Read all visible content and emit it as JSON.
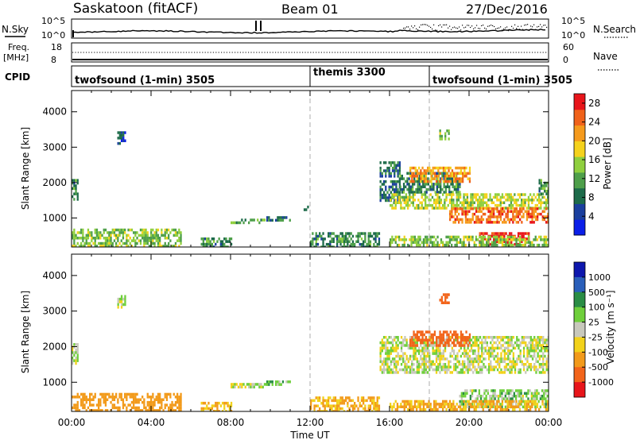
{
  "header": {
    "station_title": "Saskatoon (fitACF)",
    "beam_label": "Beam 01",
    "date_label": "27/Dec/2016"
  },
  "status_panels": {
    "nsky_label": "N.Sky",
    "nsky_ticks": [
      "10^5",
      "10^0"
    ],
    "nsearch_label": "N.Search",
    "nsearch_ticks": [
      "10^5",
      "10^0"
    ],
    "freq_label_line1": "Freq.",
    "freq_label_line2": "[MHz]",
    "freq_ticks": [
      "18",
      "8"
    ],
    "nave_label": "Nave",
    "nave_ticks": [
      "60",
      "0"
    ],
    "cpid_label": "CPID",
    "cpid_segments": [
      {
        "label": "twofsound (1-min) 3505",
        "start_hour": 0,
        "end_hour": 12
      },
      {
        "label": "themis 3300",
        "start_hour": 12,
        "end_hour": 18
      },
      {
        "label": "twofsound (1-min) 3505",
        "start_hour": 18,
        "end_hour": 24
      }
    ]
  },
  "colors": {
    "power_scale": [
      "#0a1ee8",
      "#1a3f9e",
      "#1d6b4a",
      "#4e9f4a",
      "#8fcf3e",
      "#f5d21c",
      "#f59a1c",
      "#f0621a",
      "#e8151a"
    ],
    "velocity_scale": [
      "#0d17ad",
      "#2a5fba",
      "#2a8d45",
      "#6fcf3b",
      "#c8c8bc",
      "#f2d21a",
      "#f29a1a",
      "#f2641a",
      "#e8151a"
    ],
    "ground_scatter": "#c8c8bc"
  },
  "chart_data": [
    {
      "type": "heatmap",
      "panel": "power",
      "xlabel": "",
      "ylabel": "Slant Range [km]",
      "xlim": [
        0,
        24
      ],
      "ylim": [
        180,
        4600
      ],
      "y_ticks": [
        "1000",
        "2000",
        "3000",
        "4000"
      ],
      "colorbar_label": "Power [dB]",
      "colorbar_ticks": [
        "4",
        "8",
        "12",
        "16",
        "20",
        "24",
        "28"
      ],
      "colorbar_range": [
        0,
        30
      ],
      "grid": "dashed verticals at 12:00 and 18:00",
      "regions": [
        {
          "x": [
            0.0,
            5.5
          ],
          "y": [
            200,
            700
          ],
          "value": 14
        },
        {
          "x": [
            0.0,
            0.3
          ],
          "y": [
            1550,
            2100
          ],
          "value": 10
        },
        {
          "x": [
            6.5,
            8.0
          ],
          "y": [
            200,
            450
          ],
          "value": 10
        },
        {
          "x": [
            8.0,
            9.8
          ],
          "y": [
            850,
            980
          ],
          "value": 12
        },
        {
          "x": [
            9.8,
            11.0
          ],
          "y": [
            900,
            1050
          ],
          "value": 8
        },
        {
          "x": [
            11.5,
            12.0
          ],
          "y": [
            1200,
            1350
          ],
          "value": 6
        },
        {
          "x": [
            12.0,
            15.5
          ],
          "y": [
            200,
            600
          ],
          "value": 10
        },
        {
          "x": [
            15.5,
            16.5
          ],
          "y": [
            1500,
            2600
          ],
          "value": 8
        },
        {
          "x": [
            16.5,
            19.5
          ],
          "y": [
            1700,
            2300
          ],
          "value": 10
        },
        {
          "x": [
            17.0,
            20.0
          ],
          "y": [
            2050,
            2450
          ],
          "value": 22
        },
        {
          "x": [
            16.0,
            24.0
          ],
          "y": [
            1300,
            1700
          ],
          "value": 16
        },
        {
          "x": [
            19.0,
            24.0
          ],
          "y": [
            900,
            1300
          ],
          "value": 24
        },
        {
          "x": [
            20.5,
            23.0
          ],
          "y": [
            250,
            600
          ],
          "value": 29
        },
        {
          "x": [
            16.0,
            24.0
          ],
          "y": [
            200,
            500
          ],
          "value": 14
        },
        {
          "x": [
            23.5,
            24.0
          ],
          "y": [
            1700,
            2100
          ],
          "value": 10
        },
        {
          "x": [
            18.5,
            19.0
          ],
          "y": [
            3200,
            3500
          ],
          "value": 14
        },
        {
          "x": [
            2.3,
            2.7
          ],
          "y": [
            3100,
            3450
          ],
          "value": 6
        }
      ]
    },
    {
      "type": "heatmap",
      "panel": "velocity",
      "xlabel": "Time UT",
      "ylabel": "Slant Range [km]",
      "xlim": [
        0,
        24
      ],
      "ylim": [
        180,
        4600
      ],
      "x_ticks": [
        "00:00",
        "04:00",
        "08:00",
        "12:00",
        "16:00",
        "20:00",
        "00:00"
      ],
      "y_ticks": [
        "1000",
        "2000",
        "3000",
        "4000"
      ],
      "colorbar_label": "Velocity [m s⁻¹]",
      "colorbar_ticks": [
        "1000",
        "500",
        "100",
        "25",
        "-25",
        "-100",
        "-500",
        "-1000"
      ],
      "grid": "dashed verticals at 12:00 and 18:00",
      "regions": [
        {
          "x": [
            0.0,
            5.5
          ],
          "y": [
            200,
            700
          ],
          "value": -300
        },
        {
          "x": [
            0.0,
            0.3
          ],
          "y": [
            1550,
            2100
          ],
          "value": 0
        },
        {
          "x": [
            6.5,
            8.0
          ],
          "y": [
            200,
            450
          ],
          "value": -100
        },
        {
          "x": [
            8.0,
            9.8
          ],
          "y": [
            850,
            980
          ],
          "value": 0
        },
        {
          "x": [
            9.8,
            11.0
          ],
          "y": [
            900,
            1050
          ],
          "value": 60
        },
        {
          "x": [
            12.0,
            15.5
          ],
          "y": [
            200,
            600
          ],
          "value": -120
        },
        {
          "x": [
            15.5,
            24.0
          ],
          "y": [
            1250,
            2300
          ],
          "value": 0
        },
        {
          "x": [
            17.0,
            20.0
          ],
          "y": [
            2050,
            2450
          ],
          "value": -700
        },
        {
          "x": [
            18.5,
            19.0
          ],
          "y": [
            3200,
            3500
          ],
          "value": -700
        },
        {
          "x": [
            19.5,
            24.0
          ],
          "y": [
            300,
            800
          ],
          "value": 50
        },
        {
          "x": [
            16.0,
            24.0
          ],
          "y": [
            200,
            500
          ],
          "value": -120
        },
        {
          "x": [
            2.3,
            2.7
          ],
          "y": [
            3100,
            3450
          ],
          "value": 0
        }
      ]
    }
  ]
}
